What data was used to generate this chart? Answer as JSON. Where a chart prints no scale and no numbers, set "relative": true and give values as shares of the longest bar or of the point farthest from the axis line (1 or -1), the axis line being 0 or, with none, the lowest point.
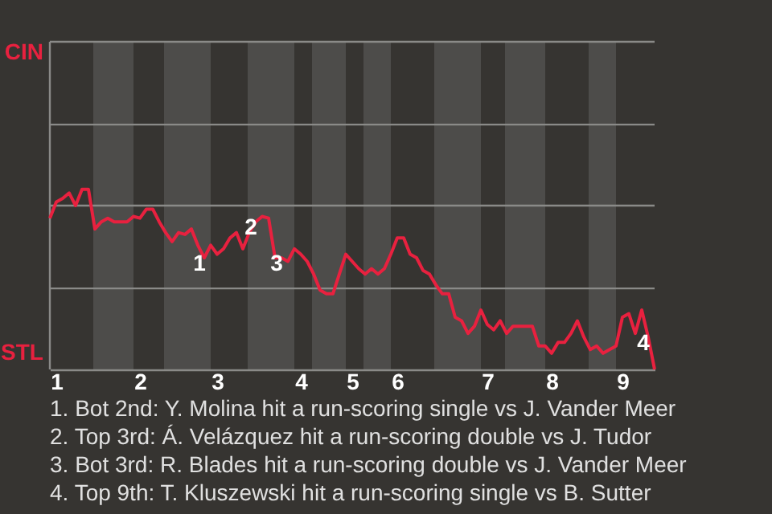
{
  "chart_data": {
    "type": "line",
    "relative": true,
    "categories": [
      null,
      "1",
      null,
      null,
      null,
      null,
      null,
      null,
      null,
      null,
      null,
      null,
      null,
      null,
      "2",
      null,
      null,
      null,
      null,
      null,
      null,
      null,
      null,
      null,
      null,
      null,
      "3",
      null,
      null,
      null,
      null,
      null,
      null,
      null,
      null,
      null,
      null,
      null,
      null,
      "4",
      null,
      null,
      null,
      null,
      null,
      null,
      null,
      "5",
      null,
      null,
      null,
      null,
      null,
      null,
      "6",
      null,
      null,
      null,
      null,
      null,
      null,
      null,
      null,
      null,
      null,
      null,
      null,
      null,
      "7",
      null,
      null,
      null,
      null,
      null,
      null,
      null,
      null,
      null,
      "8",
      null,
      null,
      null,
      null,
      null,
      null,
      null,
      null,
      null,
      null,
      "9",
      null,
      null,
      null,
      null,
      null
    ],
    "series": [
      {
        "color": "#e8213f",
        "values": [
          0.84,
          0.93,
          0.95,
          0.98,
          0.91,
          1,
          1,
          0.78,
          0.82,
          0.84,
          0.82,
          0.82,
          0.82,
          0.85,
          0.84,
          0.89,
          0.89,
          0.82,
          0.76,
          0.71,
          0.76,
          0.75,
          0.78,
          0.69,
          0.62,
          0.69,
          0.64,
          0.67,
          0.73,
          0.76,
          0.67,
          0.76,
          0.82,
          0.85,
          0.84,
          0.62,
          0.62,
          0.6,
          0.67,
          0.64,
          0.6,
          0.53,
          0.44,
          0.42,
          0.42,
          0.53,
          0.64,
          0.6,
          0.56,
          0.53,
          0.56,
          0.53,
          0.56,
          0.64,
          0.73,
          0.73,
          0.64,
          0.62,
          0.55,
          0.53,
          0.47,
          0.42,
          0.42,
          0.29,
          0.27,
          0.2,
          0.24,
          0.33,
          0.25,
          0.22,
          0.27,
          0.2,
          0.24,
          0.24,
          0.24,
          0.24,
          0.13,
          0.13,
          0.09,
          0.15,
          0.15,
          0.2,
          0.27,
          0.18,
          0.11,
          0.13,
          0.09,
          0.11,
          0.13,
          0.29,
          0.31,
          0.2,
          0.33,
          0.18,
          0
        ]
      }
    ],
    "value_labels": [
      null,
      null,
      null,
      null,
      null,
      null,
      null,
      null,
      null,
      null,
      null,
      null,
      null,
      null,
      null,
      null,
      null,
      null,
      null,
      null,
      null,
      null,
      null,
      null,
      "1",
      null,
      null,
      null,
      null,
      null,
      null,
      null,
      "2",
      null,
      null,
      null,
      "3",
      null,
      null,
      null,
      null,
      null,
      null,
      null,
      null,
      null,
      null,
      null,
      null,
      null,
      null,
      null,
      null,
      null,
      null,
      null,
      null,
      null,
      null,
      null,
      null,
      null,
      null,
      null,
      null,
      null,
      null,
      null,
      null,
      null,
      null,
      null,
      null,
      null,
      null,
      null,
      null,
      null,
      null,
      null,
      null,
      null,
      null,
      null,
      null,
      null,
      null,
      null,
      null,
      null,
      null,
      null,
      null,
      "4",
      null
    ],
    "marker": "none",
    "line_style": "solid",
    "ref_lines": [
      {
        "axis": "y",
        "value": 0.45,
        "color": "#8a8a88"
      },
      {
        "axis": "y",
        "value": 0.91,
        "color": "#8a8a88"
      },
      {
        "axis": "y",
        "value": 1.36,
        "color": "#8a8a88"
      },
      {
        "axis": "y",
        "value": 1.82,
        "color": "#8a8a88"
      }
    ],
    "annotations": [
      "CIN",
      "STL",
      "1. Bot 2nd: Y. Molina hit a run-scoring single vs J. Vander Meer",
      "2. Top 3rd: Á. Velázquez hit a run-scoring double vs J. Tudor",
      "3. Bot 3rd: R. Blades hit a run-scoring double vs J. Vander Meer",
      "4. Top 9th: T. Kluszewski hit a run-scoring single vs B. Sutter"
    ]
  }
}
